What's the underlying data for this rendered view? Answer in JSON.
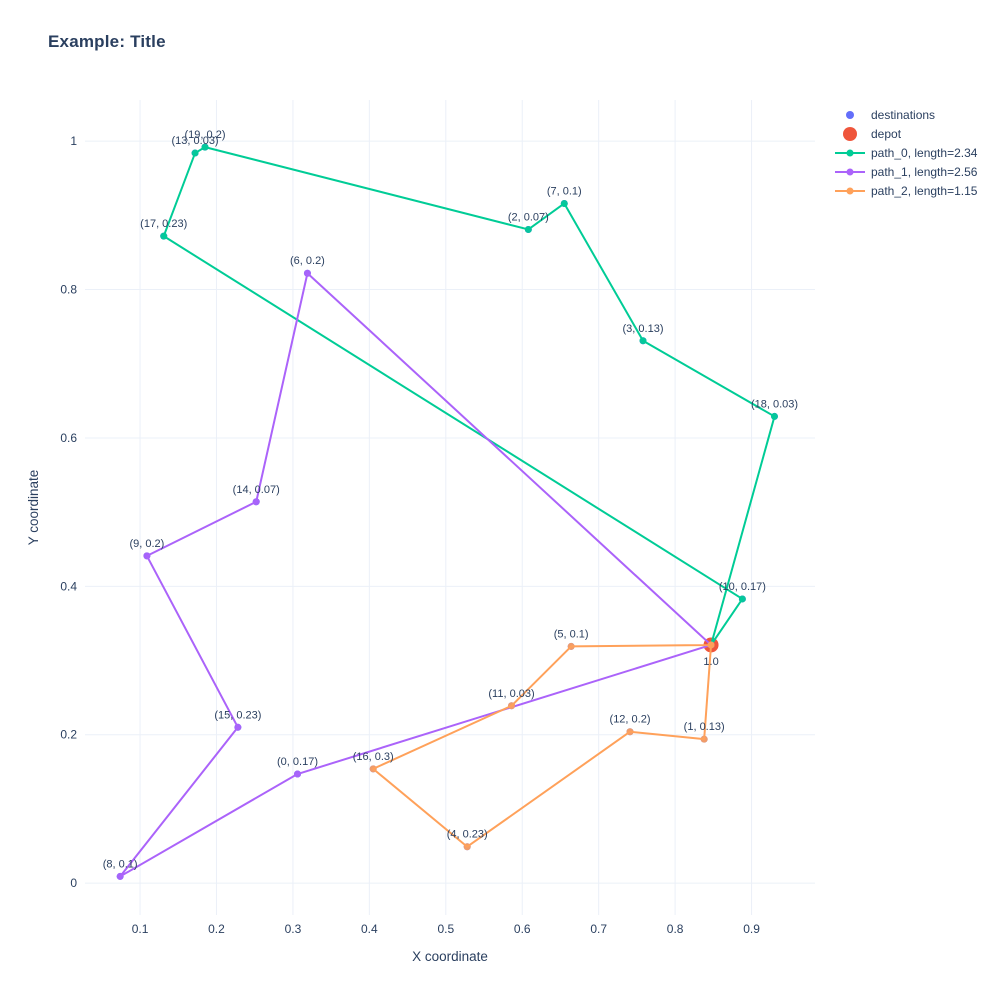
{
  "title": "Example: Title",
  "chart_data": {
    "type": "scatter",
    "title": "Example: Title",
    "xlabel": "X coordinate",
    "ylabel": "Y coordinate",
    "x_range": [
      0.028,
      0.983
    ],
    "y_range": [
      -0.043,
      1.0555
    ],
    "x_ticks": [
      "0.1",
      "0.2",
      "0.3",
      "0.4",
      "0.5",
      "0.6",
      "0.7",
      "0.8",
      "0.9"
    ],
    "x_tick_values": [
      0.1,
      0.2,
      0.3,
      0.4,
      0.5,
      0.6,
      0.7,
      0.8,
      0.9
    ],
    "y_ticks": [
      "0",
      "0.2",
      "0.4",
      "0.6",
      "0.8",
      "1"
    ],
    "y_tick_values": [
      0,
      0.2,
      0.4,
      0.6,
      0.8,
      1
    ],
    "grid": true,
    "legend_position": "outside-top-right",
    "colors": {
      "text": "#2a3f5f",
      "grid": "#ebf0f8",
      "destinations": "#636efa",
      "depot": "#ef553b",
      "path_0": "#00cc96",
      "path_1": "#ab63fa",
      "path_2": "#ffa15a"
    },
    "depot": {
      "x": 0.847,
      "y": 0.321,
      "label": "1.0"
    },
    "destinations": [
      {
        "id": 0,
        "x": 0.306,
        "y": 0.147,
        "demand": 0.17,
        "label": "(0, 0.17)"
      },
      {
        "id": 1,
        "x": 0.838,
        "y": 0.194,
        "demand": 0.13,
        "label": "(1, 0.13)"
      },
      {
        "id": 2,
        "x": 0.608,
        "y": 0.881,
        "demand": 0.07,
        "label": "(2, 0.07)"
      },
      {
        "id": 3,
        "x": 0.758,
        "y": 0.731,
        "demand": 0.13,
        "label": "(3, 0.13)"
      },
      {
        "id": 4,
        "x": 0.528,
        "y": 0.049,
        "demand": 0.23,
        "label": "(4, 0.23)"
      },
      {
        "id": 5,
        "x": 0.664,
        "y": 0.319,
        "demand": 0.1,
        "label": "(5, 0.1)"
      },
      {
        "id": 6,
        "x": 0.319,
        "y": 0.822,
        "demand": 0.2,
        "label": "(6, 0.2)"
      },
      {
        "id": 7,
        "x": 0.655,
        "y": 0.916,
        "demand": 0.1,
        "label": "(7, 0.1)"
      },
      {
        "id": 8,
        "x": 0.074,
        "y": 0.009,
        "demand": 0.1,
        "label": "(8, 0.1)"
      },
      {
        "id": 9,
        "x": 0.109,
        "y": 0.441,
        "demand": 0.2,
        "label": "(9, 0.2)"
      },
      {
        "id": 10,
        "x": 0.888,
        "y": 0.383,
        "demand": 0.17,
        "label": "(10, 0.17)"
      },
      {
        "id": 11,
        "x": 0.586,
        "y": 0.239,
        "demand": 0.03,
        "label": "(11, 0.03)"
      },
      {
        "id": 12,
        "x": 0.741,
        "y": 0.204,
        "demand": 0.2,
        "label": "(12, 0.2)"
      },
      {
        "id": 13,
        "x": 0.172,
        "y": 0.984,
        "demand": 0.03,
        "label": "(13, 0.03)"
      },
      {
        "id": 14,
        "x": 0.252,
        "y": 0.514,
        "demand": 0.07,
        "label": "(14, 0.07)"
      },
      {
        "id": 15,
        "x": 0.228,
        "y": 0.21,
        "demand": 0.23,
        "label": "(15, 0.23)"
      },
      {
        "id": 16,
        "x": 0.405,
        "y": 0.154,
        "demand": 0.3,
        "label": "(16, 0.3)"
      },
      {
        "id": 17,
        "x": 0.131,
        "y": 0.872,
        "demand": 0.23,
        "label": "(17, 0.23)"
      },
      {
        "id": 18,
        "x": 0.93,
        "y": 0.629,
        "demand": 0.03,
        "label": "(18, 0.03)"
      },
      {
        "id": 19,
        "x": 0.185,
        "y": 0.992,
        "demand": 0.2,
        "label": "(19, 0.2)"
      }
    ],
    "paths": [
      {
        "name": "path_0, length=2.34",
        "length": 2.34,
        "color": "#00cc96",
        "route": [
          "depot",
          10,
          17,
          13,
          19,
          2,
          7,
          3,
          18,
          "depot"
        ]
      },
      {
        "name": "path_1, length=2.56",
        "length": 2.56,
        "color": "#ab63fa",
        "route": [
          "depot",
          6,
          14,
          9,
          15,
          8,
          0,
          "depot"
        ]
      },
      {
        "name": "path_2, length=1.15",
        "length": 1.15,
        "color": "#ffa15a",
        "route": [
          "depot",
          5,
          11,
          16,
          4,
          12,
          1,
          "depot"
        ]
      }
    ],
    "legend": [
      {
        "label": "destinations",
        "type": "marker",
        "color": "#636efa",
        "r": 4
      },
      {
        "label": "depot",
        "type": "marker",
        "color": "#ef553b",
        "r": 7
      },
      {
        "label": "path_0, length=2.34",
        "type": "line-marker",
        "color": "#00cc96",
        "r": 3.5
      },
      {
        "label": "path_1, length=2.56",
        "type": "line-marker",
        "color": "#ab63fa",
        "r": 3.5
      },
      {
        "label": "path_2, length=1.15",
        "type": "line-marker",
        "color": "#ffa15a",
        "r": 3.5
      }
    ]
  }
}
